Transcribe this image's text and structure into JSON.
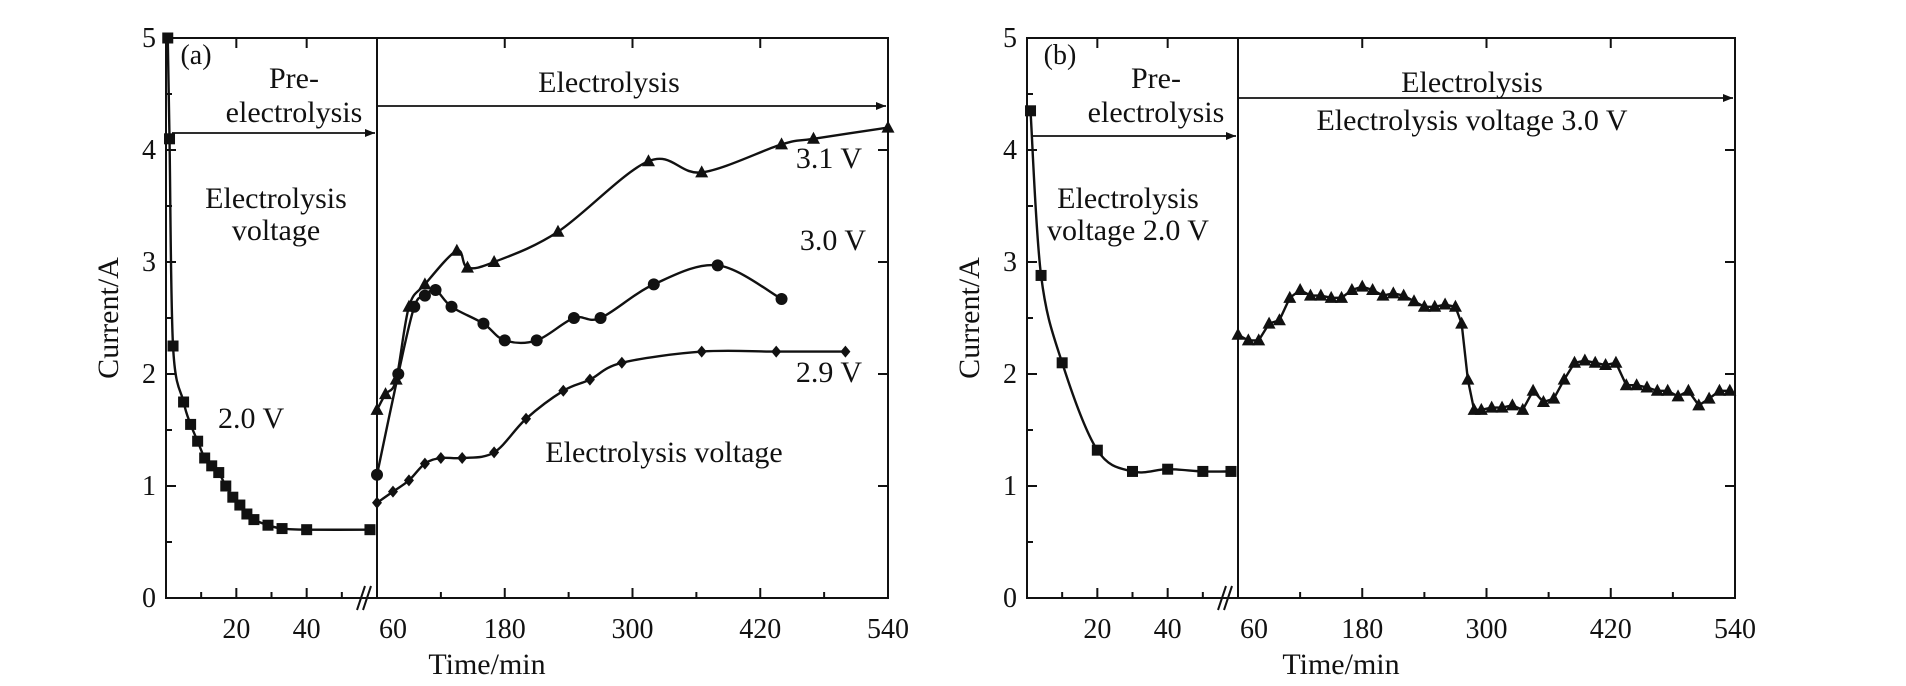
{
  "chart_data": [
    {
      "type": "line",
      "panel_label": "(a)",
      "xlabel": "Time/min",
      "ylabel": "Current/A",
      "ylim": [
        0,
        5
      ],
      "yticks": [
        "0",
        "1",
        "2",
        "3",
        "4",
        "5"
      ],
      "xticks_pre": [
        "20",
        "40",
        "60"
      ],
      "xticks_post": [
        "180",
        "300",
        "420",
        "540"
      ],
      "pre_xlim": [
        0,
        60
      ],
      "post_xlim": [
        60,
        540
      ],
      "annotations": {
        "pre_title": [
          "Pre-",
          "electrolysis"
        ],
        "post_title": "Electrolysis",
        "pre_voltage": [
          "Electrolysis",
          "voltage"
        ],
        "post_voltage": "Electrolysis voltage"
      },
      "series": [
        {
          "name": "2.0 V",
          "marker": "square",
          "phase": "pre",
          "x": [
            0.5,
            1,
            2,
            5,
            7,
            9,
            11,
            13,
            15,
            17,
            19,
            21,
            23,
            25,
            29,
            33,
            40,
            58
          ],
          "y": [
            5.0,
            4.1,
            2.25,
            1.75,
            1.55,
            1.4,
            1.25,
            1.18,
            1.12,
            1.0,
            0.9,
            0.83,
            0.75,
            0.7,
            0.65,
            0.62,
            0.61,
            0.61
          ],
          "label": "2.0 V"
        },
        {
          "name": "3.1 V",
          "marker": "triangle",
          "phase": "post",
          "x": [
            60,
            68,
            78,
            90,
            105,
            135,
            145,
            170,
            230,
            315,
            365,
            440,
            470,
            540
          ],
          "y": [
            1.68,
            1.82,
            1.95,
            2.6,
            2.8,
            3.1,
            2.95,
            3.0,
            3.27,
            3.9,
            3.8,
            4.05,
            4.1,
            4.2
          ],
          "label": "3.1 V"
        },
        {
          "name": "3.0 V",
          "marker": "circle",
          "phase": "post",
          "x": [
            60,
            80,
            95,
            105,
            115,
            130,
            160,
            180,
            210,
            245,
            270,
            320,
            380,
            440
          ],
          "y": [
            1.1,
            2.0,
            2.6,
            2.7,
            2.75,
            2.6,
            2.45,
            2.3,
            2.3,
            2.5,
            2.5,
            2.8,
            2.97,
            2.67
          ],
          "label": "3.0 V"
        },
        {
          "name": "2.9 V",
          "marker": "diamond",
          "phase": "post",
          "x": [
            60,
            75,
            90,
            105,
            120,
            140,
            170,
            200,
            235,
            260,
            290,
            365,
            435,
            500
          ],
          "y": [
            0.85,
            0.95,
            1.05,
            1.2,
            1.25,
            1.25,
            1.3,
            1.6,
            1.85,
            1.95,
            2.1,
            2.2,
            2.2,
            2.2
          ],
          "label": "2.9 V"
        }
      ]
    },
    {
      "type": "line",
      "panel_label": "(b)",
      "xlabel": "Time/min",
      "ylabel": "Current/A",
      "ylim": [
        0,
        5
      ],
      "yticks": [
        "0",
        "1",
        "2",
        "3",
        "4",
        "5"
      ],
      "xticks_pre": [
        "20",
        "40",
        "60"
      ],
      "xticks_post": [
        "180",
        "300",
        "420",
        "540"
      ],
      "pre_xlim": [
        0,
        60
      ],
      "post_xlim": [
        60,
        540
      ],
      "annotations": {
        "pre_title": [
          "Pre-",
          "electrolysis"
        ],
        "post_title": "Electrolysis",
        "pre_voltage": [
          "Electrolysis",
          "voltage 2.0 V"
        ],
        "post_voltage": "Electrolysis voltage 3.0 V"
      },
      "series": [
        {
          "name": "pre-electrolysis 2.0 V",
          "marker": "square",
          "phase": "pre",
          "x": [
            1,
            4,
            10,
            20,
            30,
            40,
            50,
            58
          ],
          "y": [
            4.35,
            2.88,
            2.1,
            1.32,
            1.13,
            1.15,
            1.13,
            1.13
          ]
        },
        {
          "name": "electrolysis 3.0 V",
          "marker": "triangle",
          "phase": "post",
          "x": [
            60,
            70,
            80,
            90,
            100,
            110,
            120,
            130,
            140,
            150,
            160,
            170,
            180,
            190,
            200,
            210,
            220,
            230,
            240,
            250,
            260,
            270,
            276,
            282,
            288,
            295,
            305,
            315,
            325,
            335,
            345,
            355,
            365,
            375,
            385,
            395,
            405,
            415,
            425,
            435,
            445,
            455,
            465,
            475,
            485,
            495,
            505,
            515,
            525,
            535
          ],
          "y": [
            2.35,
            2.3,
            2.3,
            2.45,
            2.48,
            2.68,
            2.75,
            2.7,
            2.7,
            2.68,
            2.68,
            2.75,
            2.78,
            2.75,
            2.7,
            2.72,
            2.7,
            2.65,
            2.6,
            2.6,
            2.62,
            2.6,
            2.45,
            1.95,
            1.68,
            1.68,
            1.7,
            1.7,
            1.72,
            1.68,
            1.85,
            1.75,
            1.78,
            1.95,
            2.1,
            2.12,
            2.1,
            2.08,
            2.1,
            1.9,
            1.9,
            1.88,
            1.85,
            1.85,
            1.8,
            1.85,
            1.72,
            1.78,
            1.85,
            1.85
          ]
        }
      ]
    }
  ]
}
